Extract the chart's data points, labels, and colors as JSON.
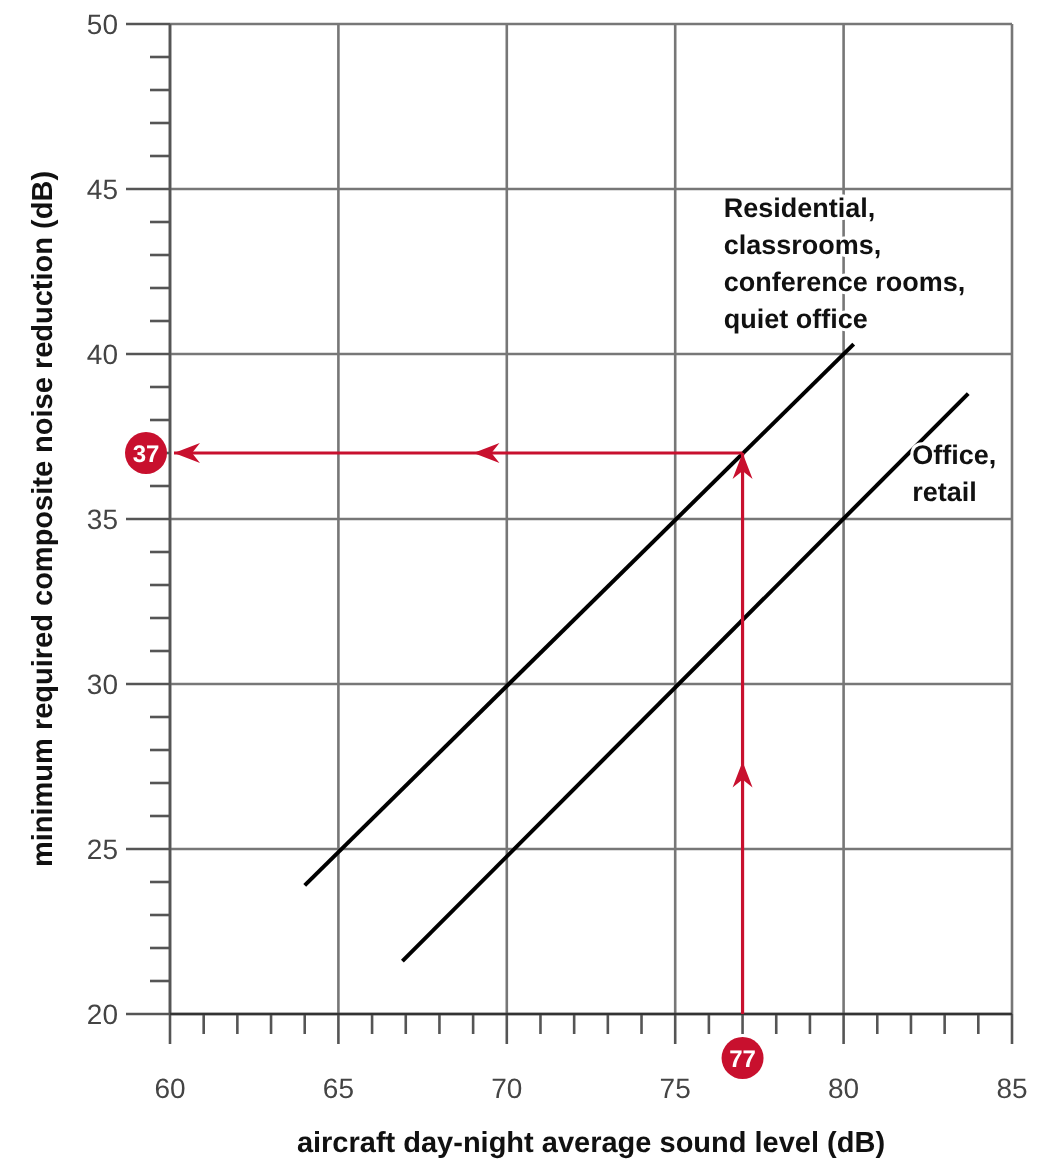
{
  "chart_data": {
    "type": "line",
    "xlabel": "aircraft day-night average sound level (dB)",
    "ylabel": "minimum required composite noise reduction (dB)",
    "series": [
      {
        "name": "Residential, classrooms, conference rooms, quiet office",
        "color": "#000000",
        "x": [
          64,
          80.3
        ],
        "values": [
          23.9,
          40.3
        ]
      },
      {
        "name": "Office, retail",
        "color": "#000000",
        "x": [
          66.9,
          83.7
        ],
        "values": [
          21.6,
          38.8
        ]
      }
    ],
    "xlim": [
      60,
      85
    ],
    "xticks": [
      60,
      {
        "value": 61,
        "label": null
      },
      {
        "value": 62,
        "label": null
      },
      {
        "value": 63,
        "label": null
      },
      {
        "value": 64,
        "label": null
      },
      65,
      {
        "value": 66,
        "label": null
      },
      {
        "value": 67,
        "label": null
      },
      {
        "value": 68,
        "label": null
      },
      {
        "value": 69,
        "label": null
      },
      70,
      {
        "value": 71,
        "label": null
      },
      {
        "value": 72,
        "label": null
      },
      {
        "value": 73,
        "label": null
      },
      {
        "value": 74,
        "label": null
      },
      75,
      {
        "value": 76,
        "label": null
      },
      {
        "value": 77,
        "label": null
      },
      {
        "value": 78,
        "label": null
      },
      {
        "value": 79,
        "label": null
      },
      80,
      {
        "value": 81,
        "label": null
      },
      {
        "value": 82,
        "label": null
      },
      {
        "value": 83,
        "label": null
      },
      {
        "value": 84,
        "label": null
      },
      85
    ],
    "ylim": [
      20,
      50
    ],
    "yticks": [
      20,
      {
        "value": 21,
        "label": null
      },
      {
        "value": 22,
        "label": null
      },
      {
        "value": 23,
        "label": null
      },
      {
        "value": 24,
        "label": null
      },
      25,
      {
        "value": 26,
        "label": null
      },
      {
        "value": 27,
        "label": null
      },
      {
        "value": 28,
        "label": null
      },
      {
        "value": 29,
        "label": null
      },
      30,
      {
        "value": 31,
        "label": null
      },
      {
        "value": 32,
        "label": null
      },
      {
        "value": 33,
        "label": null
      },
      {
        "value": 34,
        "label": null
      },
      35,
      {
        "value": 36,
        "label": null
      },
      {
        "value": 37,
        "label": null
      },
      {
        "value": 38,
        "label": null
      },
      {
        "value": 39,
        "label": null
      },
      40,
      {
        "value": 41,
        "label": null
      },
      {
        "value": 42,
        "label": null
      },
      {
        "value": 43,
        "label": null
      },
      {
        "value": 44,
        "label": null
      },
      45,
      {
        "value": 46,
        "label": null
      },
      {
        "value": 47,
        "label": null
      },
      {
        "value": 48,
        "label": null
      },
      {
        "value": 49,
        "label": null
      },
      50
    ],
    "grid": true,
    "marker": "none",
    "line_style": "solid",
    "ref_lines": [
      {
        "axis": "x",
        "value": 77,
        "label": "77",
        "color": "#c8102e"
      },
      {
        "axis": "y",
        "value": 37,
        "label": "37",
        "color": "#c8102e"
      }
    ]
  }
}
